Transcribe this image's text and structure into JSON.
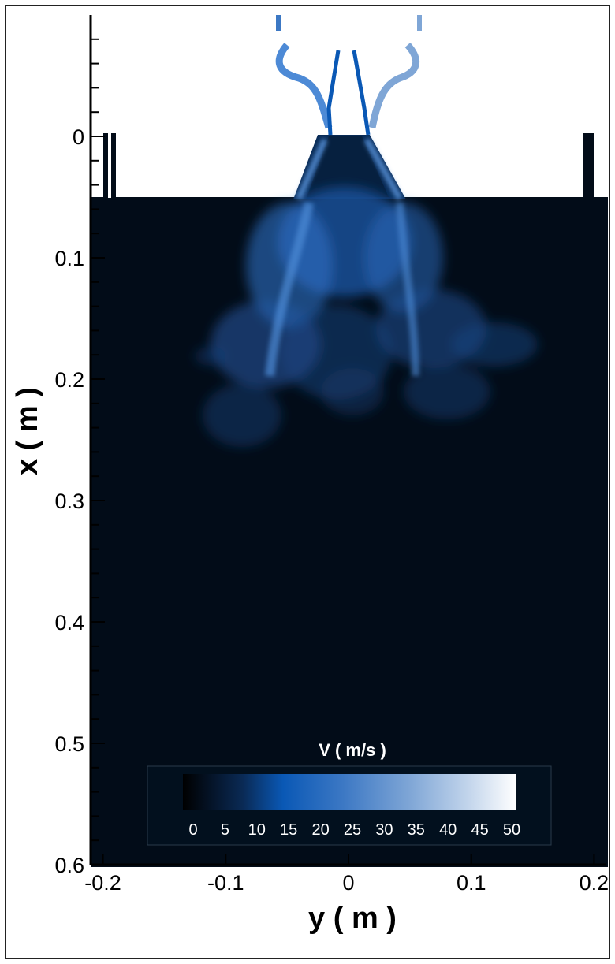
{
  "chart_data": {
    "type": "heatmap",
    "title": "",
    "xlabel": "y ( m )",
    "ylabel": "x ( m )",
    "x_range": [
      -0.21,
      0.21
    ],
    "y_range": [
      -0.1,
      0.6
    ],
    "y_inverted": true,
    "x_ticks": [
      -0.2,
      -0.1,
      0,
      0.1,
      0.2
    ],
    "x_tick_labels": [
      "-0.2",
      "-0.1",
      "0",
      "0.1",
      "0.2"
    ],
    "y_ticks": [
      0,
      0.1,
      0.2,
      0.3,
      0.4,
      0.5,
      0.6
    ],
    "y_tick_labels": [
      "0",
      "0.1",
      "0.2",
      "0.3",
      "0.4",
      "0.5",
      "0.6"
    ],
    "colorbar": {
      "title": "V ( m/s )",
      "min": 0,
      "max": 50,
      "ticks": [
        0,
        5,
        10,
        15,
        20,
        25,
        30,
        35,
        40,
        45,
        50
      ],
      "tick_labels": [
        "0",
        "5",
        "10",
        "15",
        "20",
        "25",
        "30",
        "35",
        "40",
        "45",
        "50"
      ],
      "colors": [
        "#000000",
        "#0a2a55",
        "#0a58b5",
        "#3c78c4",
        "#7fa6d6",
        "#c4d6ec",
        "#ffffff"
      ]
    },
    "background_color": "#020c18",
    "field_description_color": "#2f6fc4"
  }
}
